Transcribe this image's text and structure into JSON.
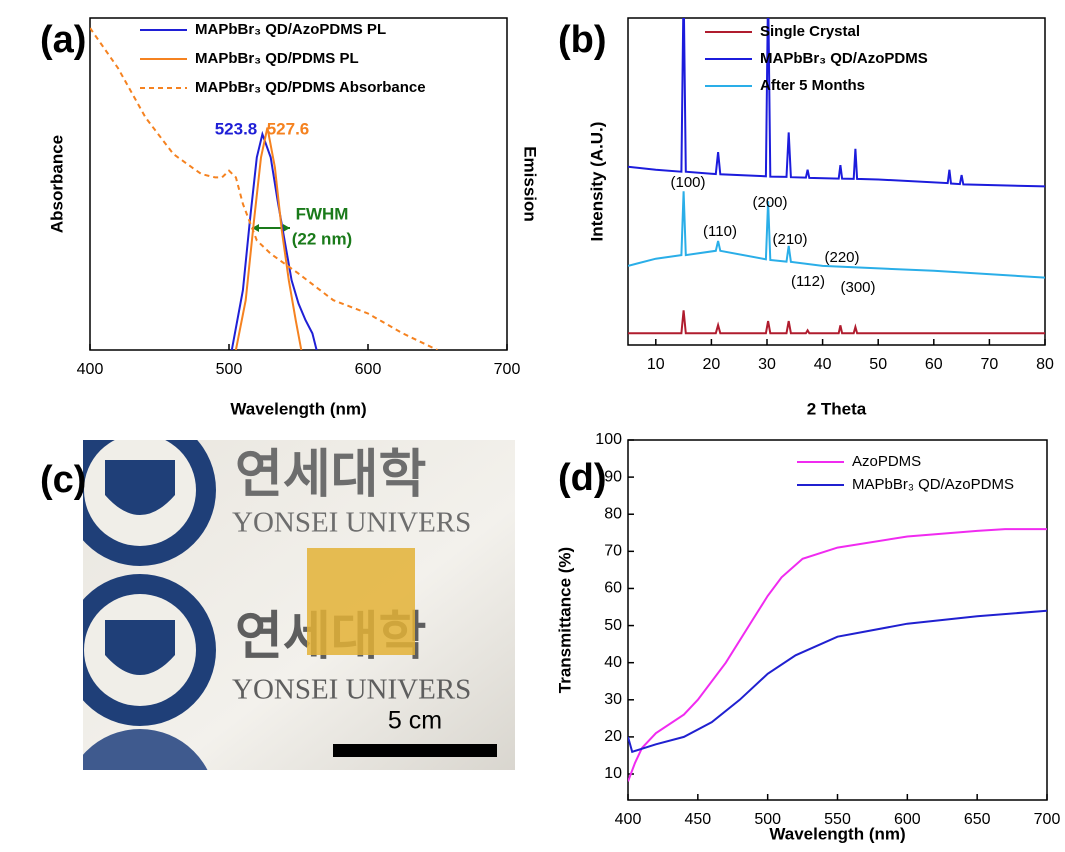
{
  "chart_data": [
    {
      "type": "line",
      "panel": "(a)",
      "xlabel": "Wavelength (nm)",
      "ylabel": "Absorbance",
      "y2label": "Emission",
      "xlim": [
        400,
        700
      ],
      "xticks": [
        400,
        500,
        600,
        700
      ],
      "ylim": [
        0,
        1
      ],
      "series": [
        {
          "name": "MAPbBr₃ QD/AzoPDMS PL",
          "color": "#1f1fd6",
          "dash": false,
          "x": [
            502,
            510,
            515,
            520,
            524,
            530,
            535,
            540,
            545,
            550,
            555,
            560,
            563
          ],
          "values": [
            0,
            0.18,
            0.39,
            0.58,
            0.65,
            0.58,
            0.45,
            0.33,
            0.21,
            0.14,
            0.09,
            0.05,
            0
          ]
        },
        {
          "name": "MAPbBr₃ QD/PDMS PL",
          "color": "#f58220",
          "dash": false,
          "x": [
            505,
            512,
            518,
            523,
            527.6,
            533,
            538,
            543,
            548,
            552
          ],
          "values": [
            0,
            0.15,
            0.39,
            0.58,
            0.67,
            0.55,
            0.36,
            0.21,
            0.09,
            0
          ]
        },
        {
          "name": "MAPbBr₃ QD/PDMS Absorbance",
          "color": "#f58220",
          "dash": true,
          "x": [
            400,
            420,
            440,
            460,
            480,
            490,
            495,
            500,
            505,
            510,
            520,
            530,
            550,
            575,
            600,
            625,
            650
          ],
          "values": [
            0.97,
            0.85,
            0.7,
            0.59,
            0.53,
            0.52,
            0.52,
            0.54,
            0.52,
            0.44,
            0.33,
            0.29,
            0.23,
            0.15,
            0.11,
            0.05,
            0
          ]
        }
      ],
      "annotations": [
        {
          "text": "523.8",
          "color": "#1f1fd6"
        },
        {
          "text": "527.6",
          "color": "#f58220"
        },
        {
          "text": "FWHM",
          "color": "#1a7a1a"
        },
        {
          "text": "(22 nm)",
          "color": "#1a7a1a"
        }
      ]
    },
    {
      "type": "line",
      "panel": "(b)",
      "xlabel": "2 Theta",
      "ylabel": "Intensity (A.U.)",
      "xlim": [
        5,
        80
      ],
      "xticks": [
        10,
        20,
        30,
        40,
        50,
        60,
        70,
        80
      ],
      "ylim": [
        0,
        100
      ],
      "series": [
        {
          "name": "Single Crystal",
          "color": "#b01c2e",
          "dash": false,
          "x": [
            5,
            14.6,
            15,
            15.4,
            20.8,
            21.2,
            21.6,
            29.8,
            30.2,
            30.6,
            33.5,
            33.9,
            34.3,
            37,
            37.3,
            37.6,
            42.9,
            43.2,
            43.5,
            45.6,
            45.9,
            46.2,
            80
          ],
          "values": [
            3.6,
            3.6,
            10.6,
            3.6,
            3.6,
            6.1,
            3.6,
            3.6,
            7.3,
            3.6,
            3.6,
            7.3,
            3.6,
            3.6,
            4.5,
            3.6,
            3.6,
            6,
            3.6,
            3.6,
            5.5,
            3.6,
            3.6
          ]
        },
        {
          "name": "MAPbBr₃ QD/AzoPDMS",
          "color": "#1c1cdc",
          "dash": false,
          "x": [
            5,
            10,
            14.6,
            15,
            15.4,
            20,
            20.8,
            21.2,
            21.6,
            29.8,
            30.2,
            30.6,
            33.5,
            33.9,
            34.3,
            37,
            37.3,
            37.6,
            42.9,
            43.2,
            43.5,
            45.6,
            45.9,
            46.2,
            50,
            62.5,
            62.8,
            63.1,
            64.7,
            65,
            65.3,
            80
          ],
          "values": [
            54.5,
            53.6,
            53,
            110,
            53,
            52.4,
            52.3,
            59,
            52.2,
            51.6,
            110,
            51.5,
            51.4,
            65,
            51.3,
            51.2,
            53.6,
            51.1,
            50.9,
            55,
            50.9,
            50.8,
            60,
            50.8,
            50.6,
            49.5,
            53.6,
            49.4,
            49.2,
            52,
            49.1,
            48.5
          ]
        },
        {
          "name": "After 5 Months",
          "color": "#2aaee8",
          "dash": false,
          "x": [
            5,
            10,
            14.6,
            15,
            15.4,
            20.8,
            21.2,
            21.6,
            29.8,
            30.2,
            30.6,
            33.5,
            33.9,
            34.3,
            40,
            60,
            80
          ],
          "values": [
            24.2,
            26.4,
            27.5,
            47,
            27.5,
            28.8,
            31.8,
            28.8,
            26.2,
            44,
            26,
            25.5,
            30.3,
            25.4,
            24.2,
            22.7,
            20.6
          ]
        }
      ],
      "annotations": [
        {
          "text": "(100)",
          "color": "#000000"
        },
        {
          "text": "(110)",
          "color": "#000000"
        },
        {
          "text": "(200)",
          "color": "#000000"
        },
        {
          "text": "(210)",
          "color": "#000000"
        },
        {
          "text": "(220)",
          "color": "#000000"
        },
        {
          "text": "(112)",
          "color": "#000000"
        },
        {
          "text": "(300)",
          "color": "#000000"
        }
      ]
    },
    {
      "type": "line",
      "panel": "(d)",
      "xlabel": "Wavelength (nm)",
      "ylabel": "Transmittance (%)",
      "xlim": [
        400,
        700
      ],
      "xticks": [
        400,
        450,
        500,
        550,
        600,
        650,
        700
      ],
      "ylim": [
        3,
        100
      ],
      "yticks": [
        10,
        20,
        30,
        40,
        50,
        60,
        70,
        80,
        90,
        100
      ],
      "series": [
        {
          "name": "AzoPDMS",
          "color": "#f02bf0",
          "dash": false,
          "x": [
            400,
            405,
            410,
            420,
            440,
            450,
            470,
            490,
            500,
            510,
            525,
            550,
            600,
            650,
            670,
            700
          ],
          "values": [
            8,
            13,
            17,
            21,
            26,
            30,
            40,
            52,
            58,
            63,
            68,
            71,
            74,
            75.5,
            76,
            76
          ]
        },
        {
          "name": "MAPbBr₃ QD/AzoPDMS",
          "color": "#2020d0",
          "dash": false,
          "x": [
            400,
            403,
            420,
            440,
            460,
            480,
            500,
            520,
            550,
            600,
            650,
            700
          ],
          "values": [
            20,
            16,
            18,
            20,
            24,
            30,
            37,
            42,
            47,
            50.5,
            52.5,
            54
          ]
        }
      ],
      "annotations": []
    }
  ],
  "photo": {
    "panel": "(c)",
    "scale_label": "5 cm",
    "texts": [
      "연세대학",
      "YONSEI UNIVERS",
      "연세대학",
      "YONSEI UNIVERS"
    ]
  }
}
